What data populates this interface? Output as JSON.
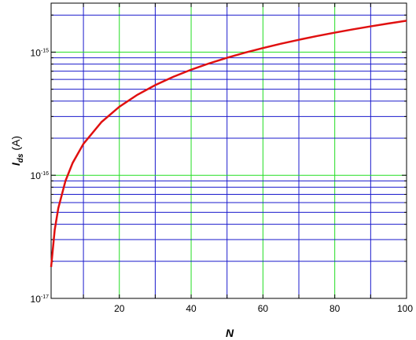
{
  "chart_data": {
    "type": "line",
    "xlabel": "N",
    "ylabel_main": "I",
    "ylabel_sub": "ds",
    "ylabel_unit": "(A)",
    "xlim": [
      1,
      100
    ],
    "ylim": [
      1e-17,
      2.5e-15
    ],
    "yscale": "log",
    "x_ticks": [
      "20",
      "40",
      "60",
      "80",
      "100"
    ],
    "y_ticks": [
      {
        "base": "10",
        "exp": "-17",
        "value": 1e-17
      },
      {
        "base": "10",
        "exp": "-16",
        "value": 1e-16
      },
      {
        "base": "10",
        "exp": "-15",
        "value": 1e-15
      }
    ],
    "grid": true,
    "series": [
      {
        "color": "#e01010",
        "x": [
          1,
          2,
          3,
          5,
          7,
          10,
          15,
          20,
          25,
          30,
          35,
          40,
          45,
          50,
          55,
          60,
          65,
          70,
          75,
          80,
          85,
          90,
          95,
          100
        ],
        "y": [
          1.8e-17,
          3.6e-17,
          5.4e-17,
          9e-17,
          1.26e-16,
          1.8e-16,
          2.7e-16,
          3.6e-16,
          4.5e-16,
          5.4e-16,
          6.3e-16,
          7.2e-16,
          8.1e-16,
          9e-16,
          9.9e-16,
          1.08e-15,
          1.17e-15,
          1.26e-15,
          1.35e-15,
          1.44e-15,
          1.53e-15,
          1.62e-15,
          1.71e-15,
          1.8e-15
        ]
      }
    ]
  },
  "colors": {
    "major_grid": "#22dd22",
    "minor_grid": "#1a1acc",
    "curve": "#e01010"
  }
}
